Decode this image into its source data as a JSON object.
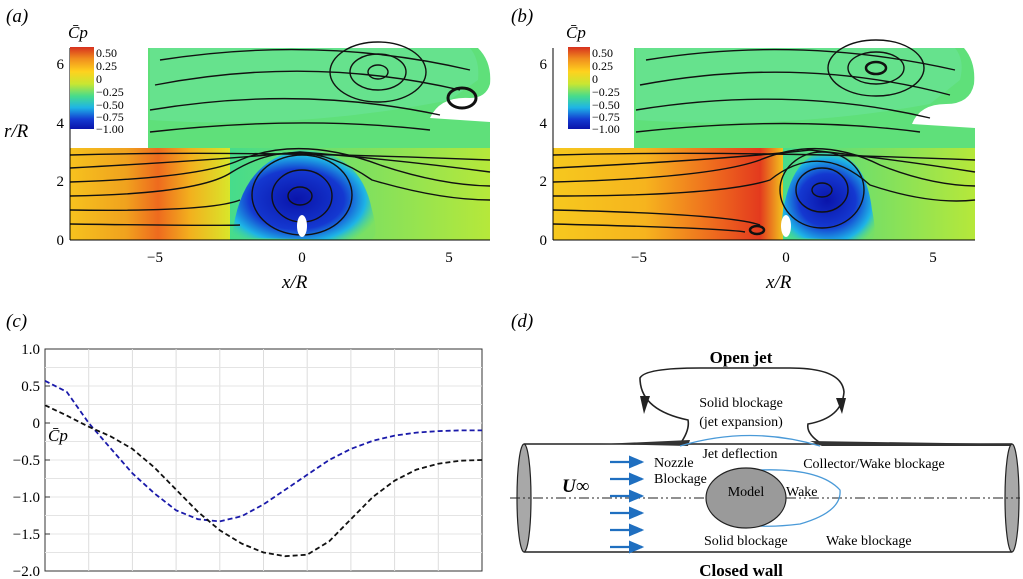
{
  "panel_labels": {
    "a": "(a)",
    "b": "(b)",
    "c": "(c)",
    "d": "(d)"
  },
  "contour": {
    "colorbar_title": "C̄p",
    "colorbar_ticks": [
      "0.50",
      "0.25",
      "0",
      "−0.25",
      "−0.50",
      "−0.75",
      "−1.00"
    ],
    "colorbar_colors": [
      "#d7301f",
      "#f08c1e",
      "#ffd21e",
      "#c8e632",
      "#46dc8c",
      "#1eb4e6",
      "#143cd2",
      "#0a14aa"
    ],
    "x_ticks": [
      "−5",
      "0",
      "5"
    ],
    "y_ticks": [
      "0",
      "2",
      "4",
      "6"
    ],
    "xlabel": "x/R",
    "ylabel": "r/R"
  },
  "chart_data": {
    "type": "line",
    "ylabel": "C̄p",
    "ylim": [
      -2.0,
      1.0
    ],
    "yticks": [
      "1.0",
      "0.5",
      "0",
      "−0.5",
      "−1.0",
      "−1.5",
      "−2.0"
    ],
    "grid": true,
    "series": [
      {
        "color": "#1a1aaa",
        "style": "dashed",
        "x": [
          0,
          0.05,
          0.1,
          0.15,
          0.2,
          0.25,
          0.3,
          0.35,
          0.4,
          0.45,
          0.5,
          0.55,
          0.6,
          0.65,
          0.7,
          0.75,
          0.8,
          0.85,
          0.9,
          0.95,
          1.0
        ],
        "values": [
          0.57,
          0.42,
          0.0,
          -0.34,
          -0.68,
          -0.95,
          -1.18,
          -1.3,
          -1.33,
          -1.26,
          -1.1,
          -0.9,
          -0.7,
          -0.5,
          -0.35,
          -0.24,
          -0.17,
          -0.13,
          -0.11,
          -0.1,
          -0.1
        ]
      },
      {
        "color": "#111111",
        "style": "dashed",
        "x": [
          0,
          0.05,
          0.1,
          0.15,
          0.2,
          0.25,
          0.3,
          0.35,
          0.4,
          0.45,
          0.5,
          0.55,
          0.6,
          0.65,
          0.7,
          0.75,
          0.8,
          0.85,
          0.9,
          0.95,
          1.0
        ],
        "values": [
          0.24,
          0.1,
          -0.05,
          -0.18,
          -0.35,
          -0.6,
          -0.9,
          -1.2,
          -1.45,
          -1.63,
          -1.75,
          -1.8,
          -1.78,
          -1.6,
          -1.3,
          -1.0,
          -0.78,
          -0.63,
          -0.55,
          -0.51,
          -0.5
        ]
      }
    ]
  },
  "diagram": {
    "open_jet": "Open jet",
    "closed_wall": "Closed wall",
    "solid_blockage_jet_1": "Solid blockage",
    "solid_blockage_jet_2": "(jet expansion)",
    "jet_deflection": "Jet deflection",
    "collector_wake": "Collector/Wake blockage",
    "nozzle": "Nozzle",
    "blockage": "Blockage",
    "u_inf": "U∞",
    "model": "Model",
    "wake": "Wake",
    "solid_blockage": "Solid blockage",
    "wake_blockage": "Wake blockage",
    "arrow_color": "#1f6fc0",
    "model_fill": "#9a9a9a"
  }
}
